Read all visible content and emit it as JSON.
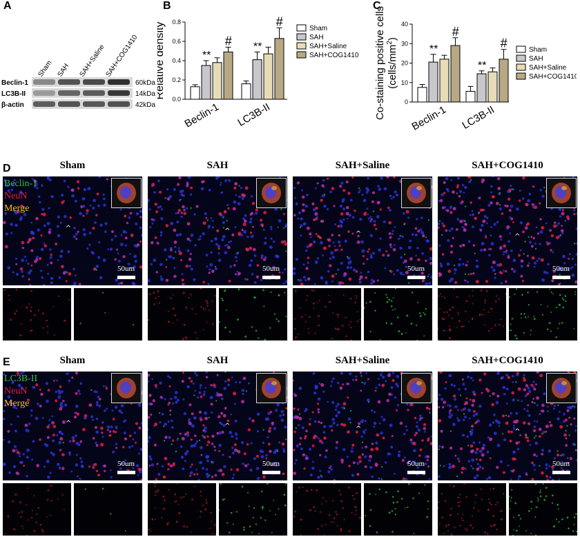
{
  "panels": {
    "A": "A",
    "B": "B",
    "C": "C",
    "D": "D",
    "E": "E"
  },
  "blot": {
    "lanes": [
      "Sham",
      "SAH",
      "SAH+Saline",
      "SAH+COG1410"
    ],
    "rows": [
      {
        "label": "Beclin-1",
        "kda": "60kDa"
      },
      {
        "label": "LC3B-II",
        "kda": "14kDa"
      },
      {
        "label": "β-actin",
        "kda": "42kDa"
      }
    ]
  },
  "legend": [
    "Sham",
    "SAH",
    "SAH+Saline",
    "SAH+COG1410"
  ],
  "colors": {
    "Sham": "#ffffff",
    "SAH": "#c8c8cc",
    "SAH+Saline": "#e8dcb8",
    "SAH+COG1410": "#b8a884",
    "blue_nuclei": "#2a35d8",
    "red_neun": "#e02040",
    "green_marker": "#30c040",
    "merge_yellow": "#f0c020"
  },
  "chart_data": [
    {
      "type": "bar",
      "categories": [
        "Beclin-1",
        "LC3B-II"
      ],
      "series": [
        {
          "name": "Sham",
          "values": [
            0.13,
            0.16
          ],
          "errors": [
            0.02,
            0.03
          ]
        },
        {
          "name": "SAH",
          "values": [
            0.35,
            0.41
          ],
          "errors": [
            0.05,
            0.08
          ]
        },
        {
          "name": "SAH+Saline",
          "values": [
            0.38,
            0.47
          ],
          "errors": [
            0.05,
            0.07
          ]
        },
        {
          "name": "SAH+COG1410",
          "values": [
            0.49,
            0.63
          ],
          "errors": [
            0.05,
            0.11
          ]
        }
      ],
      "ylabel": "Relative density",
      "ylim": [
        0,
        0.8
      ],
      "yticks": [
        "0.0",
        "0.2",
        "0.4",
        "0.6",
        "0.8"
      ],
      "annotations": [
        {
          "category": "Beclin-1",
          "series": "SAH",
          "text": "**"
        },
        {
          "category": "Beclin-1",
          "series": "SAH+COG1410",
          "text": "#"
        },
        {
          "category": "LC3B-II",
          "series": "SAH",
          "text": "**"
        },
        {
          "category": "LC3B-II",
          "series": "SAH+COG1410",
          "text": "#"
        }
      ]
    },
    {
      "type": "bar",
      "categories": [
        "Beclin-1",
        "LC3B-II"
      ],
      "series": [
        {
          "name": "Sham",
          "values": [
            7.5,
            5.5
          ],
          "errors": [
            1.5,
            2.5
          ]
        },
        {
          "name": "SAH",
          "values": [
            20.5,
            14.5
          ],
          "errors": [
            4.0,
            1.5
          ]
        },
        {
          "name": "SAH+Saline",
          "values": [
            22,
            15.5
          ],
          "errors": [
            2.0,
            2.0
          ]
        },
        {
          "name": "SAH+COG1410",
          "values": [
            29,
            22
          ],
          "errors": [
            4.0,
            5.0
          ]
        }
      ],
      "ylabel_line1": "Co-staining positive cells",
      "ylabel_line2": "(cells/mm",
      "ylabel_sup": "2",
      "ylabel_close": ")",
      "ylim": [
        0,
        40
      ],
      "yticks": [
        "0",
        "10",
        "20",
        "30",
        "40"
      ],
      "annotations": [
        {
          "category": "Beclin-1",
          "series": "SAH",
          "text": "**"
        },
        {
          "category": "Beclin-1",
          "series": "SAH+COG1410",
          "text": "#"
        },
        {
          "category": "LC3B-II",
          "series": "SAH",
          "text": "**"
        },
        {
          "category": "LC3B-II",
          "series": "SAH+COG1410",
          "text": "#"
        }
      ]
    }
  ],
  "panelD": {
    "conditions": [
      "Sham",
      "SAH",
      "SAH+Saline",
      "SAH+COG1410"
    ],
    "stain": [
      "Beclin-1",
      "NeuN",
      "Merge"
    ],
    "scale": "50um",
    "density": [
      0.5,
      0.7,
      0.8,
      1.0
    ],
    "green": [
      0.05,
      0.4,
      0.5,
      0.7
    ]
  },
  "panelE": {
    "conditions": [
      "Sham",
      "SAH",
      "SAH+Saline",
      "SAH+COG1410"
    ],
    "stain": [
      "LC3B-II",
      "NeuN",
      "Merge"
    ],
    "scale": "50um",
    "density": [
      0.6,
      0.8,
      0.8,
      1.0
    ],
    "green": [
      0.05,
      0.5,
      0.4,
      0.7
    ]
  }
}
